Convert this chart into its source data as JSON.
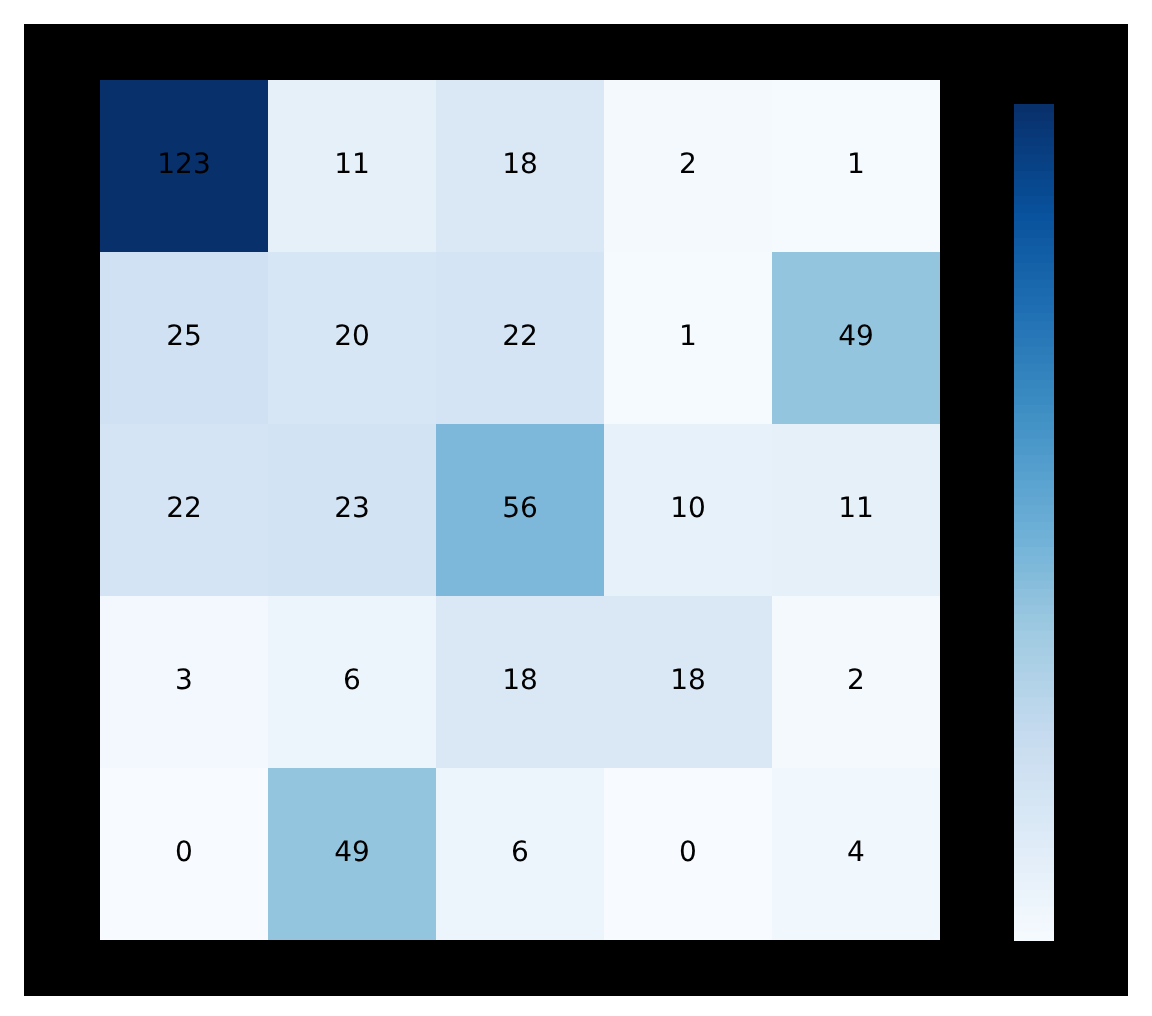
{
  "chart_data": {
    "type": "heatmap",
    "categories": [
      null,
      null,
      null,
      null,
      null
    ],
    "y_categories": [
      null,
      null,
      null,
      null,
      null
    ],
    "cells": [
      [
        123,
        11,
        18,
        2,
        1
      ],
      [
        25,
        20,
        22,
        1,
        49
      ],
      [
        22,
        23,
        56,
        10,
        11
      ],
      [
        3,
        6,
        18,
        18,
        2
      ],
      [
        0,
        49,
        6,
        0,
        4
      ]
    ],
    "data_labels": true,
    "tick_labels": false
  }
}
